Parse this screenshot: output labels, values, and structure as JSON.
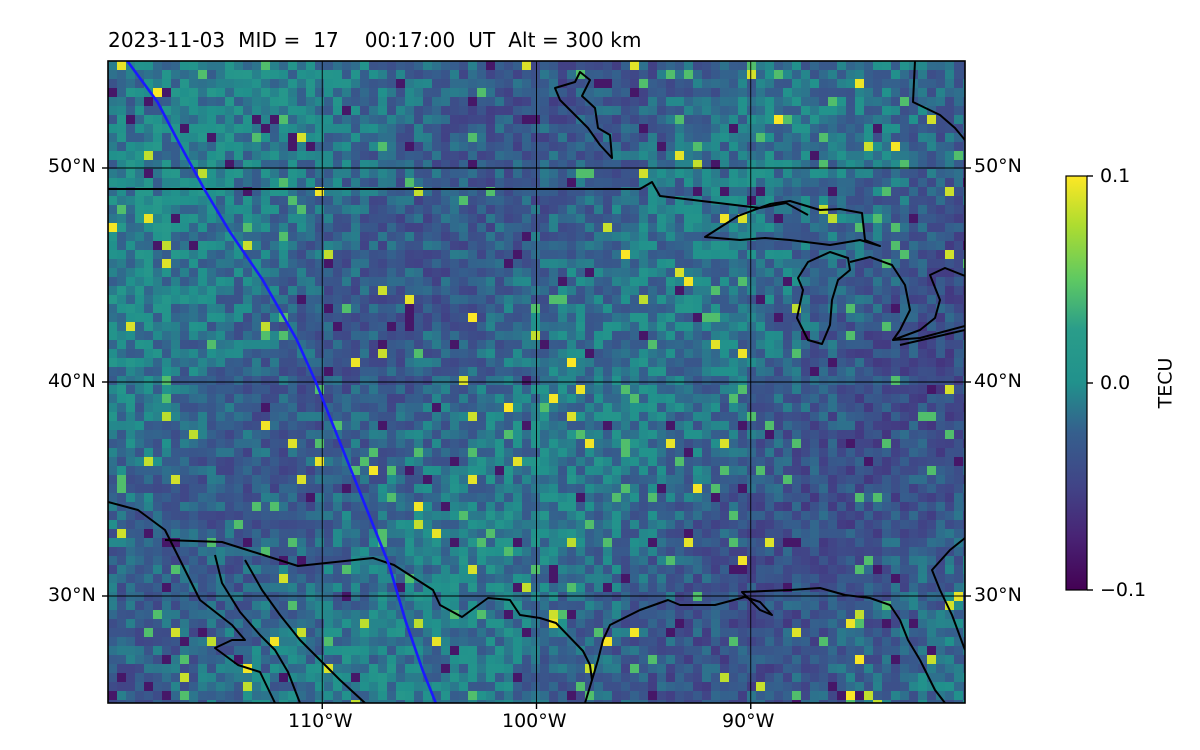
{
  "title": "2023-11-03  MID =  17    00:17:00  UT  Alt = 300 km",
  "map": {
    "lon_range": [
      -120,
      -80
    ],
    "lat_range": [
      25,
      55
    ],
    "lat_gridlines": [
      30,
      40,
      50
    ],
    "lon_gridlines": [
      -110,
      -100,
      -90
    ],
    "lat_tick_labels": [
      "30°N",
      "40°N",
      "50°N"
    ],
    "lon_tick_labels": [
      "110°W",
      "100°W",
      "90°W"
    ],
    "grid": true,
    "colormap": "viridis",
    "track_color": "#1a1aff",
    "track": [
      [
        -119.1,
        55
      ],
      [
        -117.7,
        53.1
      ],
      [
        -116.7,
        51.2
      ],
      [
        -115.5,
        49.0
      ],
      [
        -114.3,
        47.0
      ],
      [
        -112.8,
        44.8
      ],
      [
        -111.2,
        42.0
      ],
      [
        -110.3,
        40.0
      ],
      [
        -109.1,
        37.0
      ],
      [
        -107.7,
        33.5
      ],
      [
        -106.9,
        31.5
      ],
      [
        -106.1,
        28.8
      ],
      [
        -105.3,
        26.5
      ],
      [
        -104.7,
        25
      ]
    ]
  },
  "colorbar": {
    "label": "TECU",
    "min": -0.1,
    "max": 0.1,
    "ticks": [
      "0.1",
      "0.0",
      "−0.1"
    ]
  }
}
